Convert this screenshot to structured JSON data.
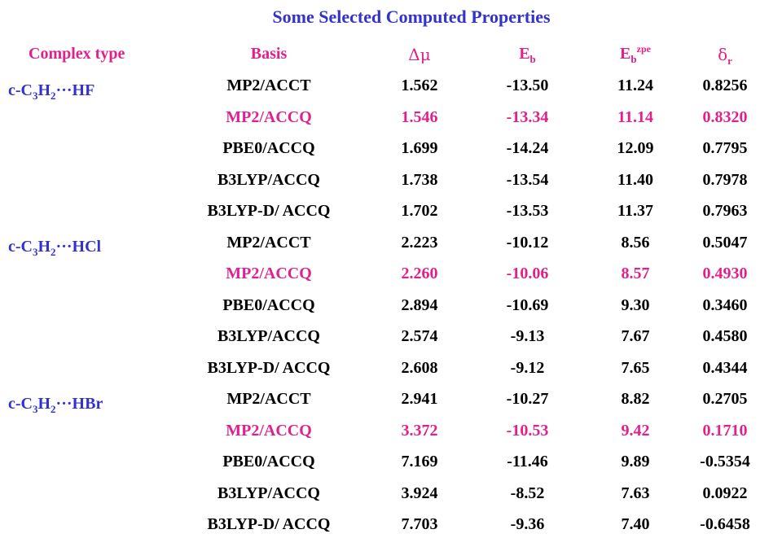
{
  "title": "Some Selected Computed Properties",
  "headers": {
    "complex_type": "Complex type",
    "basis": "Basis",
    "dmu": "Δμ",
    "eb_main": "E",
    "eb_sub": "b",
    "ebzpe_main": "E",
    "ebzpe_sub": "b",
    "ebzpe_sup": "zpe",
    "dr_main": "δ",
    "dr_sub": "r"
  },
  "complexes": [
    {
      "prefix": "c-C",
      "s1": "3",
      "mid": "H",
      "s2": "2",
      "suffix": "···HF"
    },
    {
      "prefix": "c-C",
      "s1": "3",
      "mid": "H",
      "s2": "2",
      "suffix": "···HCl"
    },
    {
      "prefix": "c-C",
      "s1": "3",
      "mid": "H",
      "s2": "2",
      "suffix": "···HBr"
    }
  ],
  "rows": [
    {
      "basis": "MP2/ACCT",
      "dmu": "1.562",
      "eb": "-13.50",
      "ebzpe": "11.24",
      "dr": "0.8256"
    },
    {
      "basis": "MP2/ACCQ",
      "dmu": "1.546",
      "eb": "-13.34",
      "ebzpe": "11.14",
      "dr": "0.8320"
    },
    {
      "basis": "PBE0/ACCQ",
      "dmu": "1.699",
      "eb": "-14.24",
      "ebzpe": "12.09",
      "dr": "0.7795"
    },
    {
      "basis": "B3LYP/ACCQ",
      "dmu": "1.738",
      "eb": "-13.54",
      "ebzpe": "11.40",
      "dr": "0.7978"
    },
    {
      "basis": "B3LYP-D/ ACCQ",
      "dmu": "1.702",
      "eb": "-13.53",
      "ebzpe": "11.37",
      "dr": "0.7963"
    },
    {
      "basis": "MP2/ACCT",
      "dmu": "2.223",
      "eb": "-10.12",
      "ebzpe": "8.56",
      "dr": "0.5047"
    },
    {
      "basis": "MP2/ACCQ",
      "dmu": "2.260",
      "eb": "-10.06",
      "ebzpe": "8.57",
      "dr": "0.4930"
    },
    {
      "basis": "PBE0/ACCQ",
      "dmu": "2.894",
      "eb": "-10.69",
      "ebzpe": "9.30",
      "dr": "0.3460"
    },
    {
      "basis": "B3LYP/ACCQ",
      "dmu": "2.574",
      "eb": "-9.13",
      "ebzpe": "7.67",
      "dr": "0.4580"
    },
    {
      "basis": "B3LYP-D/ ACCQ",
      "dmu": "2.608",
      "eb": "-9.12",
      "ebzpe": "7.65",
      "dr": "0.4344"
    },
    {
      "basis": "MP2/ACCT",
      "dmu": "2.941",
      "eb": "-10.27",
      "ebzpe": "8.82",
      "dr": "0.2705"
    },
    {
      "basis": "MP2/ACCQ",
      "dmu": "3.372",
      "eb": "-10.53",
      "ebzpe": "9.42",
      "dr": "0.1710"
    },
    {
      "basis": "PBE0/ACCQ",
      "dmu": "7.169",
      "eb": "-11.46",
      "ebzpe": "9.89",
      "dr": "-0.5354"
    },
    {
      "basis": "B3LYP/ACCQ",
      "dmu": "3.924",
      "eb": "-8.52",
      "ebzpe": "7.63",
      "dr": "0.0922"
    },
    {
      "basis": "B3LYP-D/ ACCQ",
      "dmu": "7.703",
      "eb": "-9.36",
      "ebzpe": "7.40",
      "dr": "-0.6458"
    }
  ],
  "colors": {
    "title": "#3333cc",
    "header": "#e0218a",
    "highlight": "#e0218a",
    "text": "#000000"
  }
}
